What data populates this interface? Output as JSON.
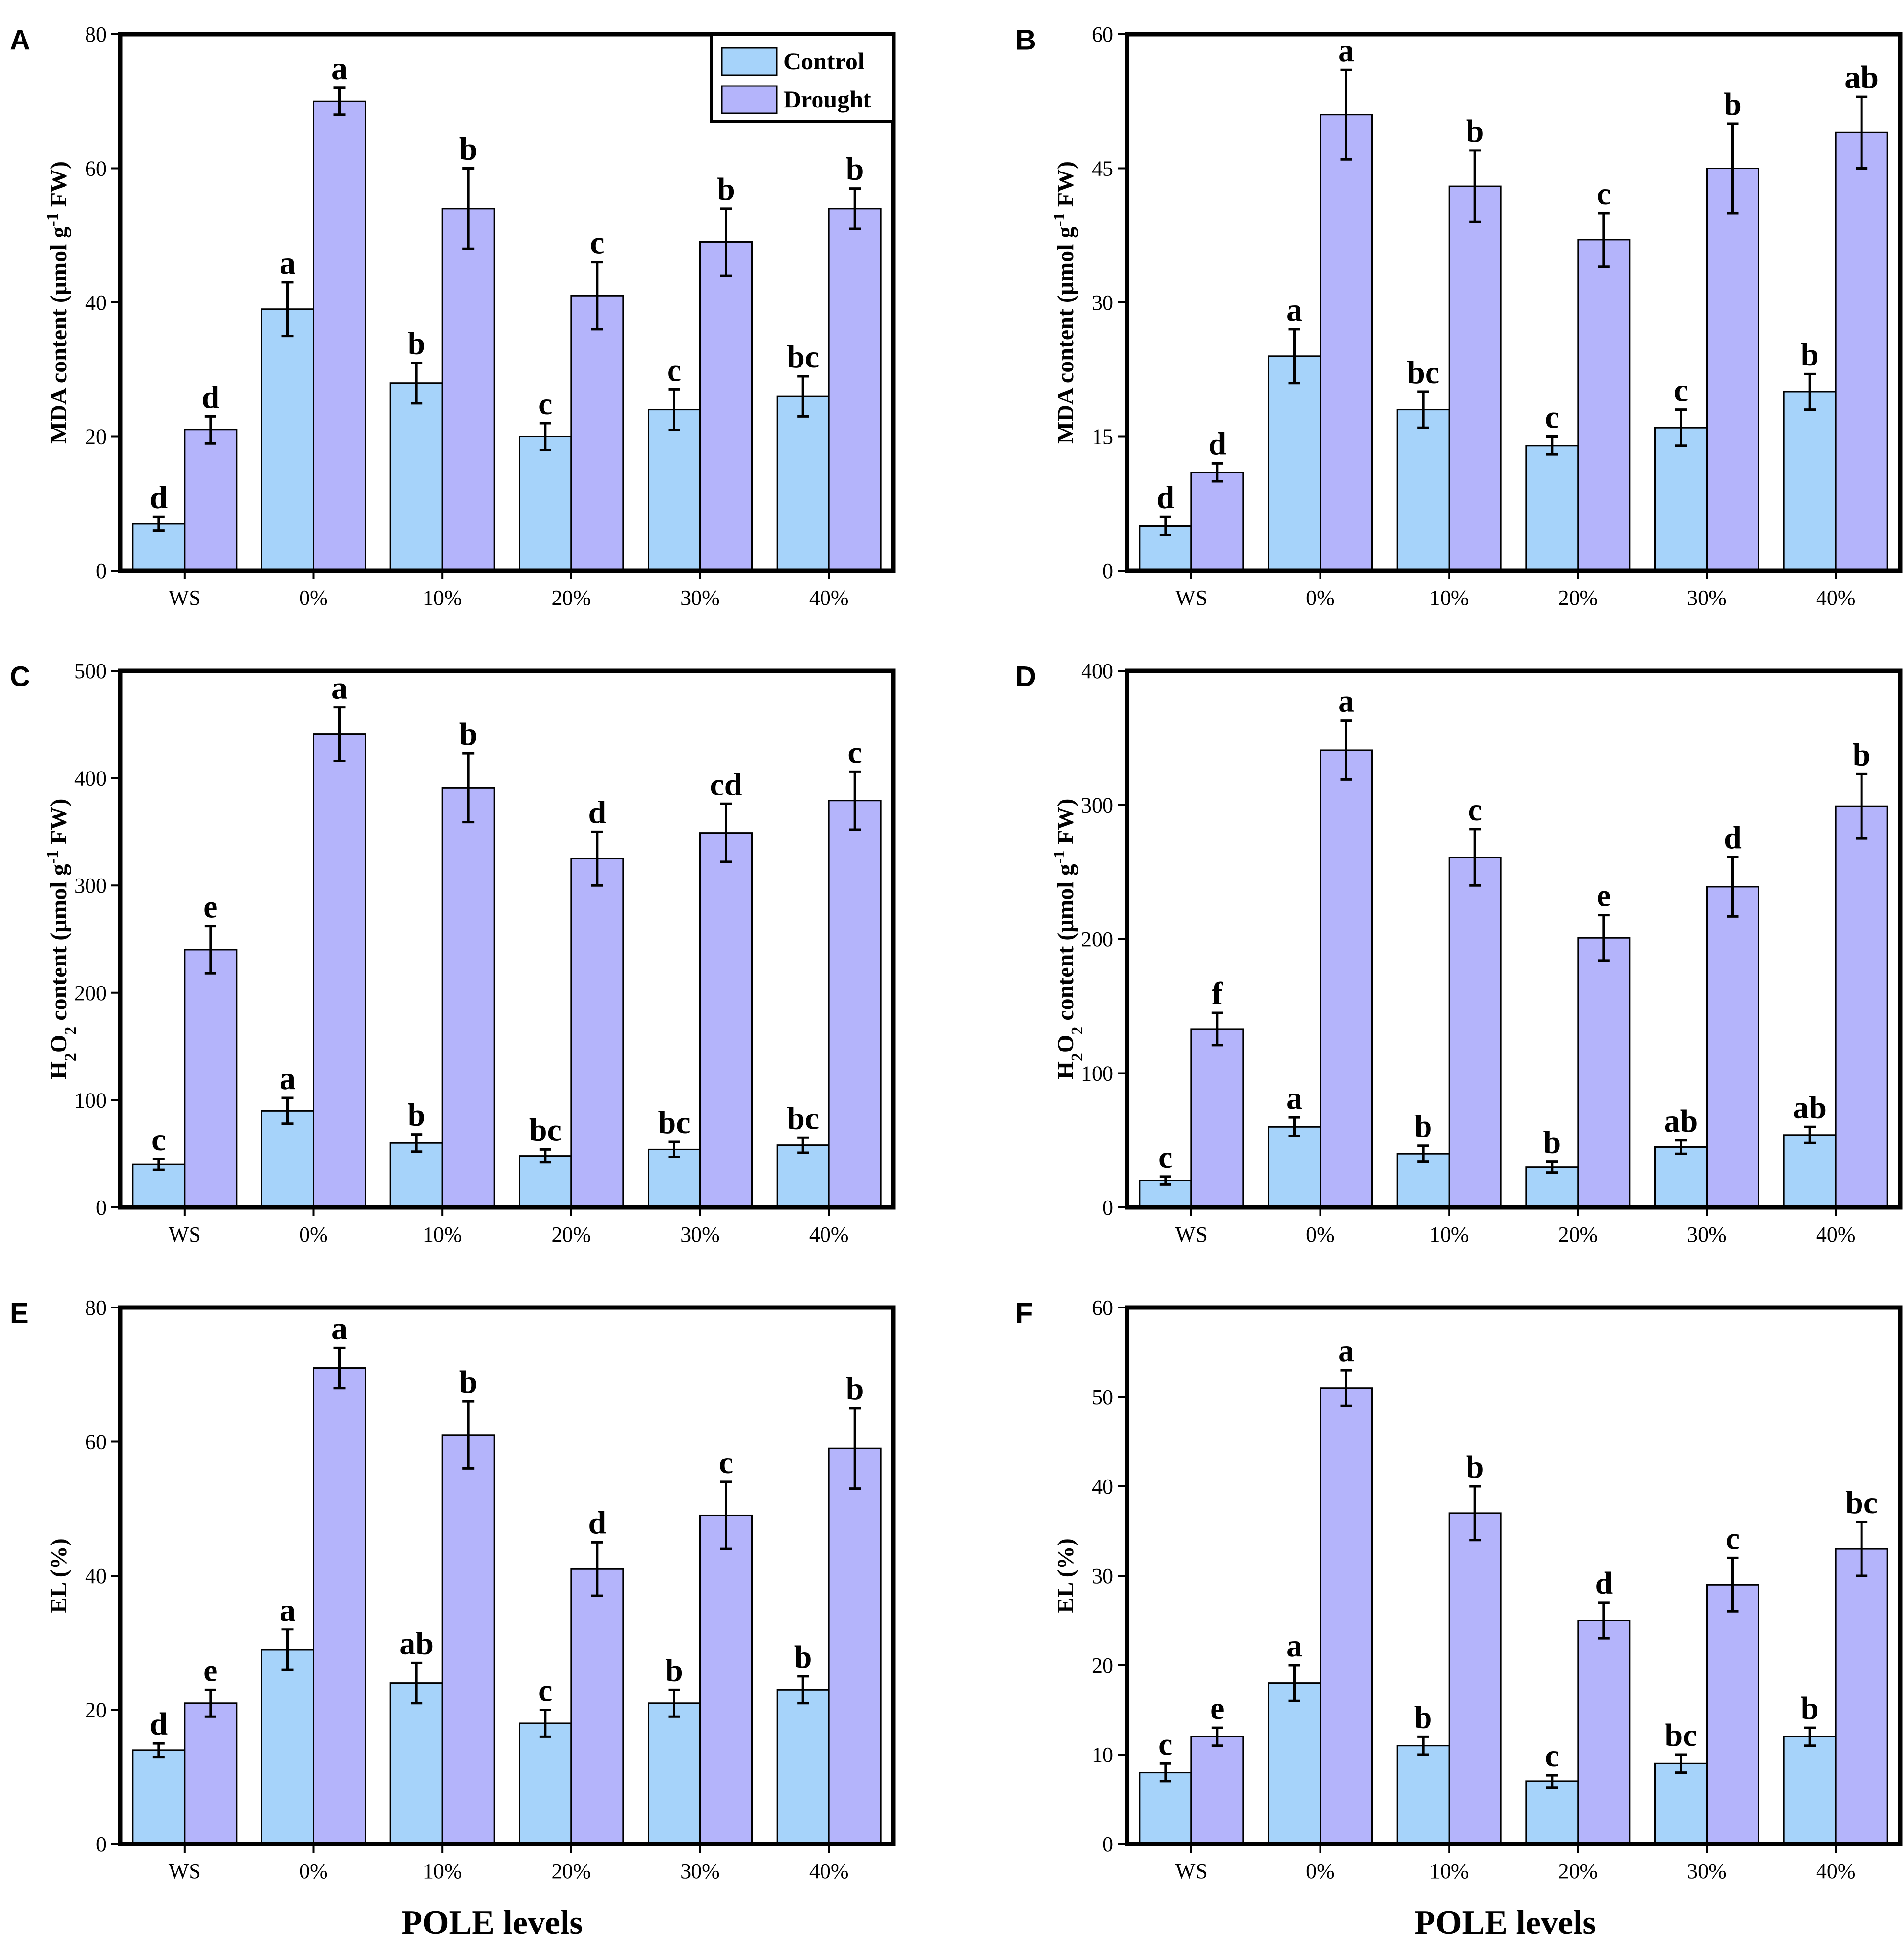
{
  "colors": {
    "control": "#a6d3fa",
    "drought": "#b4b4fb",
    "axis": "#000000"
  },
  "legend": {
    "entries": [
      "Control",
      "Drought"
    ],
    "panel": "A",
    "placement": "top-right"
  },
  "x_axis_title": "POLE levels",
  "chart_data": [
    {
      "type": "bar",
      "panel": "A",
      "ylabel": "MDA content (μmol g⁻¹ FW)",
      "ylabel_parts": {
        "pre": "MDA content (μmol g",
        "sup": "-1",
        "post": " FW)"
      },
      "ylim": [
        0,
        80
      ],
      "yticks": [
        0,
        20,
        40,
        60,
        80
      ],
      "categories": [
        "WS",
        "0%",
        "10%",
        "20%",
        "30%",
        "40%"
      ],
      "series": [
        {
          "name": "Control",
          "values": [
            7,
            39,
            28,
            20,
            24,
            26
          ],
          "errors": [
            1,
            4,
            3,
            2,
            3,
            3
          ],
          "letters": [
            "d",
            "a",
            "b",
            "c",
            "c",
            "bc"
          ]
        },
        {
          "name": "Drought",
          "values": [
            21,
            70,
            54,
            41,
            49,
            54
          ],
          "errors": [
            2,
            2,
            6,
            5,
            5,
            3
          ],
          "letters": [
            "d",
            "a",
            "b",
            "c",
            "b",
            "b"
          ]
        }
      ]
    },
    {
      "type": "bar",
      "panel": "B",
      "ylabel": "MDA content (μmol g⁻¹ FW)",
      "ylabel_parts": {
        "pre": "MDA content (μmol g",
        "sup": "-1",
        "post": " FW)"
      },
      "ylim": [
        0,
        60
      ],
      "yticks": [
        0,
        15,
        30,
        45,
        60
      ],
      "categories": [
        "WS",
        "0%",
        "10%",
        "20%",
        "30%",
        "40%"
      ],
      "series": [
        {
          "name": "Control",
          "values": [
            5,
            24,
            18,
            14,
            16,
            20
          ],
          "errors": [
            1,
            3,
            2,
            1,
            2,
            2
          ],
          "letters": [
            "d",
            "a",
            "bc",
            "c",
            "c",
            "b"
          ]
        },
        {
          "name": "Drought",
          "values": [
            11,
            51,
            43,
            37,
            45,
            49
          ],
          "errors": [
            1,
            5,
            4,
            3,
            5,
            4
          ],
          "letters": [
            "d",
            "a",
            "b",
            "c",
            "b",
            "ab"
          ]
        }
      ]
    },
    {
      "type": "bar",
      "panel": "C",
      "ylabel": "H₂O₂ content (μmol g⁻¹ FW)",
      "ylabel_parts": {
        "pre": "H",
        "sub1": "2",
        "mid": "O",
        "sub2": "2",
        "pre2": " content (μmol g",
        "sup": "-1",
        "post": " FW)"
      },
      "ylim": [
        0,
        500
      ],
      "yticks": [
        0,
        100,
        200,
        300,
        400,
        500
      ],
      "categories": [
        "WS",
        "0%",
        "10%",
        "20%",
        "30%",
        "40%"
      ],
      "series": [
        {
          "name": "Control",
          "values": [
            40,
            90,
            60,
            48,
            54,
            58
          ],
          "errors": [
            5,
            12,
            8,
            6,
            7,
            7
          ],
          "letters": [
            "c",
            "a",
            "b",
            "bc",
            "bc",
            "bc"
          ]
        },
        {
          "name": "Drought",
          "values": [
            240,
            441,
            391,
            325,
            349,
            379
          ],
          "errors": [
            22,
            25,
            32,
            25,
            27,
            27
          ],
          "letters": [
            "e",
            "a",
            "b",
            "d",
            "cd",
            "c"
          ]
        }
      ]
    },
    {
      "type": "bar",
      "panel": "D",
      "ylabel": "H₂O₂ content (μmol g⁻¹ FW)",
      "ylabel_parts": {
        "pre": "H",
        "sub1": "2",
        "mid": "O",
        "sub2": "2",
        "pre2": " content (μmol g",
        "sup": "-1",
        "post": " FW)"
      },
      "ylim": [
        0,
        400
      ],
      "yticks": [
        0,
        100,
        200,
        300,
        400
      ],
      "categories": [
        "WS",
        "0%",
        "10%",
        "20%",
        "30%",
        "40%"
      ],
      "series": [
        {
          "name": "Control",
          "values": [
            20,
            60,
            40,
            30,
            45,
            54
          ],
          "errors": [
            3,
            7,
            6,
            4,
            5,
            6
          ],
          "letters": [
            "c",
            "a",
            "b",
            "b",
            "ab",
            "ab"
          ]
        },
        {
          "name": "Drought",
          "values": [
            133,
            341,
            261,
            201,
            239,
            299
          ],
          "errors": [
            12,
            22,
            21,
            17,
            22,
            24
          ],
          "letters": [
            "f",
            "a",
            "c",
            "e",
            "d",
            "b"
          ]
        }
      ]
    },
    {
      "type": "bar",
      "panel": "E",
      "ylabel": "EL (%)",
      "ylabel_parts": {
        "pre": "EL (%)"
      },
      "ylim": [
        0,
        80
      ],
      "yticks": [
        0,
        20,
        40,
        60,
        80
      ],
      "categories": [
        "WS",
        "0%",
        "10%",
        "20%",
        "30%",
        "40%"
      ],
      "series": [
        {
          "name": "Control",
          "values": [
            14,
            29,
            24,
            18,
            21,
            23
          ],
          "errors": [
            1,
            3,
            3,
            2,
            2,
            2
          ],
          "letters": [
            "d",
            "a",
            "ab",
            "c",
            "b",
            "b"
          ]
        },
        {
          "name": "Drought",
          "values": [
            21,
            71,
            61,
            41,
            49,
            59
          ],
          "errors": [
            2,
            3,
            5,
            4,
            5,
            6
          ],
          "letters": [
            "e",
            "a",
            "b",
            "d",
            "c",
            "b"
          ]
        }
      ]
    },
    {
      "type": "bar",
      "panel": "F",
      "ylabel": "EL (%)",
      "ylabel_parts": {
        "pre": "EL (%)"
      },
      "ylim": [
        0,
        60
      ],
      "yticks": [
        0,
        10,
        20,
        30,
        40,
        50,
        60
      ],
      "categories": [
        "WS",
        "0%",
        "10%",
        "20%",
        "30%",
        "40%"
      ],
      "series": [
        {
          "name": "Control",
          "values": [
            8,
            18,
            11,
            7,
            9,
            12
          ],
          "errors": [
            1,
            2,
            1,
            0.7,
            1,
            1
          ],
          "letters": [
            "c",
            "a",
            "b",
            "c",
            "bc",
            "b"
          ]
        },
        {
          "name": "Drought",
          "values": [
            12,
            51,
            37,
            25,
            29,
            33
          ],
          "errors": [
            1,
            2,
            3,
            2,
            3,
            3
          ],
          "letters": [
            "e",
            "a",
            "b",
            "d",
            "c",
            "bc"
          ]
        }
      ]
    }
  ]
}
